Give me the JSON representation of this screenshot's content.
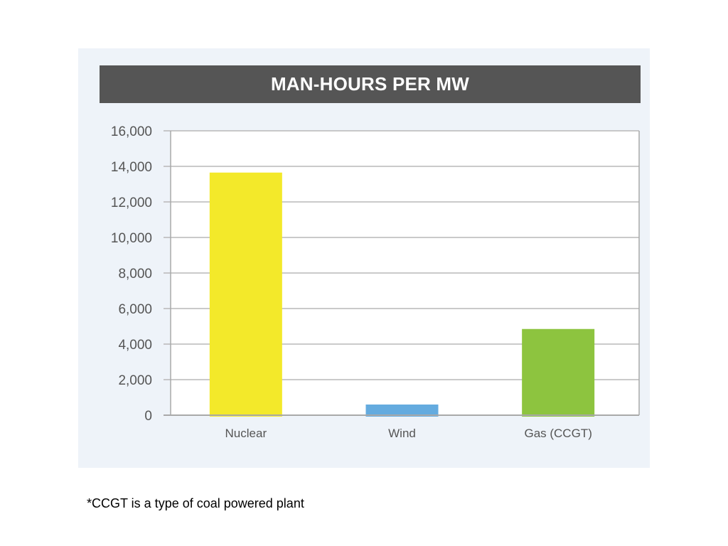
{
  "chart_data": {
    "type": "bar",
    "title": "MAN-HOURS PER MW",
    "categories": [
      "Nuclear",
      "Wind",
      "Gas (CCGT)"
    ],
    "values": [
      13650,
      600,
      4850
    ],
    "colors": [
      "#f3e92a",
      "#64abdf",
      "#8dc43f"
    ],
    "ylim": [
      0,
      16000
    ],
    "yticks": [
      "0",
      "2,000",
      "4,000",
      "6,000",
      "8,000",
      "10,000",
      "12,000",
      "14,000",
      "16,000"
    ],
    "ytick_values": [
      0,
      2000,
      4000,
      6000,
      8000,
      10000,
      12000,
      14000,
      16000
    ],
    "grid": true
  },
  "footnote": "*CCGT is a type of coal powered plant"
}
